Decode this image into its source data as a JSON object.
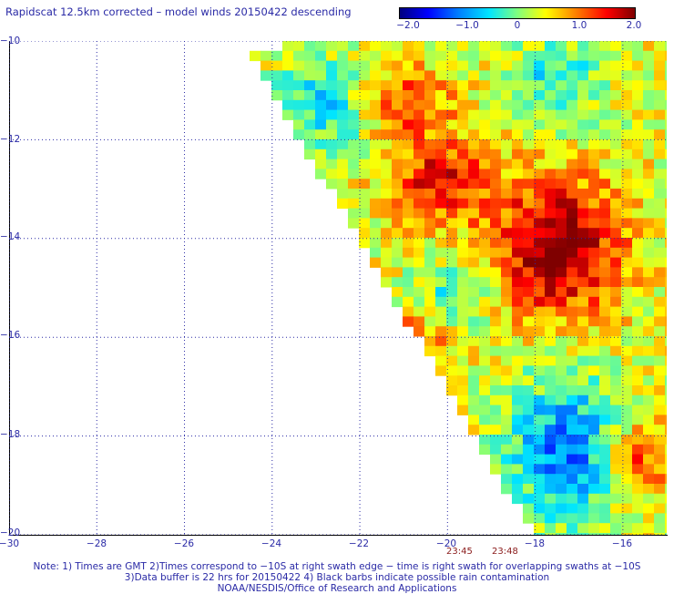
{
  "title": "Rapidscat 12.5km corrected – model winds 20150422 descending",
  "colorbar": {
    "labels": [
      "−2.0",
      "−1.0",
      "0",
      "1.0",
      "2.0"
    ],
    "values": [
      -2.0,
      -1.0,
      0,
      1.0,
      2.0
    ],
    "min": -2.0,
    "max": 2.0
  },
  "map": {
    "lon_range": [
      -30,
      -15
    ],
    "lat_range": [
      -20,
      -10
    ],
    "x_ticks": [
      "−30",
      "−28",
      "−26",
      "−24",
      "−22",
      "−20",
      "−18",
      "−16"
    ],
    "y_ticks": [
      "−10",
      "−12",
      "−14",
      "−16",
      "−18",
      "−20"
    ],
    "grid": true
  },
  "times": [
    "23:45",
    "23:48"
  ],
  "footer": {
    "line1": "Note: 1) Times are GMT 2)Times correspond to −10S at right swath edge − time is right swath for overlapping swaths at −10S",
    "line2": "3)Data buffer is 22 hrs for 20150422 4) Black barbs indicate possible rain contamination",
    "line3": "NOAA/NESDIS/Office of Research and Applications"
  }
}
